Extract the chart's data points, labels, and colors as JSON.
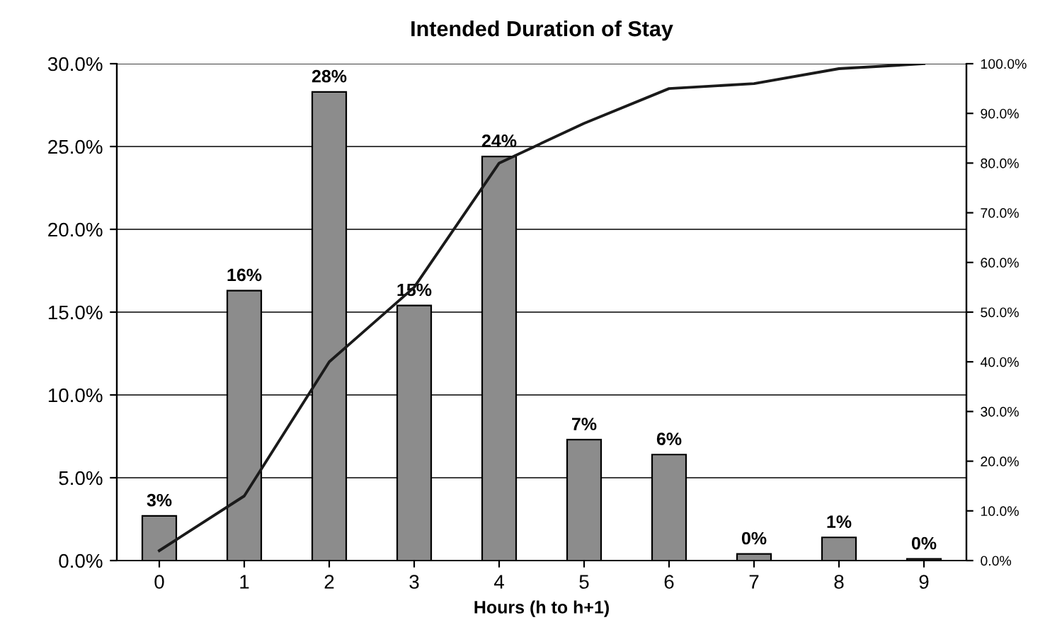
{
  "chart_data": {
    "type": "bar",
    "title": "Intended Duration of Stay",
    "xlabel": "Hours (h to h+1)",
    "categories": [
      "0",
      "1",
      "2",
      "3",
      "4",
      "5",
      "6",
      "7",
      "8",
      "9"
    ],
    "series": [
      {
        "color": "#8c8c8c",
        "values": [
          2.7,
          16.3,
          28.3,
          15.4,
          24.4,
          7.3,
          6.4,
          0.4,
          1.4,
          0.1
        ],
        "value_labels": [
          "3%",
          "16%",
          "28%",
          "15%",
          "24%",
          "7%",
          "6%",
          "0%",
          "1%",
          "0%"
        ]
      },
      {
        "type": "line",
        "axis": "y2",
        "color": "#1a1a1a",
        "values": [
          2,
          13,
          40,
          55,
          80,
          88,
          95,
          96,
          99,
          100
        ]
      }
    ],
    "ylim": [
      0,
      30
    ],
    "yticks": [
      {
        "value": 0,
        "label": "0.0%"
      },
      {
        "value": 5,
        "label": "5.0%"
      },
      {
        "value": 10,
        "label": "10.0%"
      },
      {
        "value": 15,
        "label": "15.0%"
      },
      {
        "value": 20,
        "label": "20.0%"
      },
      {
        "value": 25,
        "label": "25.0%"
      },
      {
        "value": 30,
        "label": "30.0%"
      }
    ],
    "y2lim": [
      0,
      100
    ],
    "y2ticks": [
      {
        "value": 0,
        "label": "0.0%"
      },
      {
        "value": 10,
        "label": "10.0%"
      },
      {
        "value": 20,
        "label": "20.0%"
      },
      {
        "value": 30,
        "label": "30.0%"
      },
      {
        "value": 40,
        "label": "40.0%"
      },
      {
        "value": 50,
        "label": "50.0%"
      },
      {
        "value": 60,
        "label": "60.0%"
      },
      {
        "value": 70,
        "label": "70.0%"
      },
      {
        "value": 80,
        "label": "80.0%"
      },
      {
        "value": 90,
        "label": "90.0%"
      },
      {
        "value": 100,
        "label": "100.0%"
      }
    ],
    "grid": "y",
    "marker": "none",
    "line_style": "solid"
  }
}
